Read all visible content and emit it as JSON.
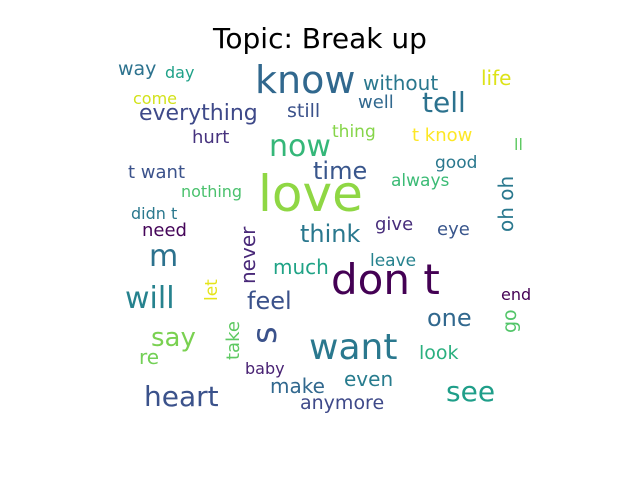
{
  "chart_data": {
    "type": "wordcloud",
    "title": "Topic: Break up",
    "words": [
      {
        "text": "love",
        "weight": 1.0,
        "color": "#8fd744"
      },
      {
        "text": "don t",
        "weight": 0.85,
        "color": "#440154"
      },
      {
        "text": "know",
        "weight": 0.7,
        "color": "#31688e"
      },
      {
        "text": "want",
        "weight": 0.6,
        "color": "#2a788e"
      },
      {
        "text": "s",
        "weight": 0.55,
        "color": "#3b528b"
      },
      {
        "text": "now",
        "weight": 0.5,
        "color": "#35b779"
      },
      {
        "text": "tell",
        "weight": 0.45,
        "color": "#2c728e"
      },
      {
        "text": "will",
        "weight": 0.45,
        "color": "#26828e"
      },
      {
        "text": "heart",
        "weight": 0.42,
        "color": "#3b528b"
      },
      {
        "text": "see",
        "weight": 0.4,
        "color": "#1f9e89"
      },
      {
        "text": "m",
        "weight": 0.4,
        "color": "#2c728e"
      },
      {
        "text": "say",
        "weight": 0.38,
        "color": "#7ad151"
      },
      {
        "text": "time",
        "weight": 0.35,
        "color": "#39568c"
      },
      {
        "text": "feel",
        "weight": 0.33,
        "color": "#3b528b"
      },
      {
        "text": "one",
        "weight": 0.32,
        "color": "#31688e"
      },
      {
        "text": "think",
        "weight": 0.3,
        "color": "#2a788e"
      },
      {
        "text": "everything",
        "weight": 0.3,
        "color": "#3e4989"
      },
      {
        "text": "never",
        "weight": 0.28,
        "color": "#482878"
      },
      {
        "text": "much",
        "weight": 0.27,
        "color": "#20a386"
      },
      {
        "text": "make",
        "weight": 0.27,
        "color": "#31688e"
      },
      {
        "text": "without",
        "weight": 0.27,
        "color": "#2a788e"
      },
      {
        "text": "oh oh",
        "weight": 0.26,
        "color": "#2a788e"
      },
      {
        "text": "even",
        "weight": 0.26,
        "color": "#287c8e"
      },
      {
        "text": "take",
        "weight": 0.25,
        "color": "#5ec962"
      },
      {
        "text": "anymore",
        "weight": 0.24,
        "color": "#3e4989"
      },
      {
        "text": "life",
        "weight": 0.24,
        "color": "#dde318"
      },
      {
        "text": "still",
        "weight": 0.24,
        "color": "#3b528b"
      },
      {
        "text": "go",
        "weight": 0.23,
        "color": "#52c569"
      },
      {
        "text": "look",
        "weight": 0.23,
        "color": "#2ab07f"
      },
      {
        "text": "well",
        "weight": 0.22,
        "color": "#31688e"
      },
      {
        "text": "way",
        "weight": 0.22,
        "color": "#2c728e"
      },
      {
        "text": "hurt",
        "weight": 0.22,
        "color": "#46327e"
      },
      {
        "text": "re",
        "weight": 0.22,
        "color": "#73d056"
      },
      {
        "text": "give",
        "weight": 0.21,
        "color": "#472d7b"
      },
      {
        "text": "eye",
        "weight": 0.21,
        "color": "#39568c"
      },
      {
        "text": "need",
        "weight": 0.21,
        "color": "#450559"
      },
      {
        "text": "t want",
        "weight": 0.2,
        "color": "#3b528b"
      },
      {
        "text": "t know",
        "weight": 0.2,
        "color": "#fde725"
      },
      {
        "text": "leave",
        "weight": 0.2,
        "color": "#26828e"
      },
      {
        "text": "thing",
        "weight": 0.2,
        "color": "#86d549"
      },
      {
        "text": "always",
        "weight": 0.2,
        "color": "#3bbb75"
      },
      {
        "text": "good",
        "weight": 0.2,
        "color": "#2a788e"
      },
      {
        "text": "baby",
        "weight": 0.19,
        "color": "#482173"
      },
      {
        "text": "let",
        "weight": 0.19,
        "color": "#e5e419"
      },
      {
        "text": "day",
        "weight": 0.18,
        "color": "#1fa188"
      },
      {
        "text": "come",
        "weight": 0.18,
        "color": "#d2e21b"
      },
      {
        "text": "nothing",
        "weight": 0.18,
        "color": "#4ac16d"
      },
      {
        "text": "didn t",
        "weight": 0.17,
        "color": "#2a788e"
      },
      {
        "text": "end",
        "weight": 0.17,
        "color": "#440154"
      },
      {
        "text": "ll",
        "weight": 0.16,
        "color": "#5ec962"
      }
    ]
  }
}
